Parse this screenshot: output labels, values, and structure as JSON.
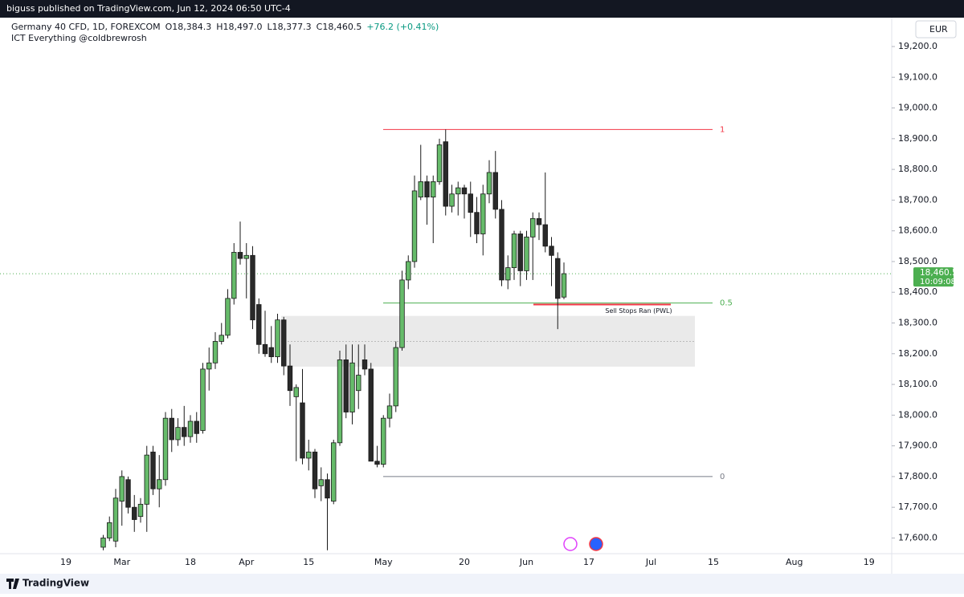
{
  "header": {
    "published": "biguss published on TradingView.com, Jun 12, 2024 06:50 UTC-4",
    "symbol": "Germany 40 CFD, 1D, FOREXCOM",
    "legend_values": [
      "O18,384.3",
      "H18,497.0",
      "L18,377.3",
      "C18,460.5",
      "+76.2 (+0.41%)"
    ],
    "indicator": "ICT Everything @coldbrewrosh",
    "currency": "EUR"
  },
  "footer": {
    "brand": "TradingView"
  },
  "chart_data": {
    "type": "candlestick",
    "up_color": "#66bb6a",
    "down_color": "#2a2a2a",
    "categories": [
      "19",
      null,
      null,
      null,
      null,
      null,
      null,
      null,
      null,
      "Mar",
      null,
      null,
      null,
      null,
      null,
      null,
      null,
      null,
      null,
      null,
      "18",
      null,
      null,
      null,
      null,
      null,
      null,
      null,
      null,
      "Apr",
      null,
      null,
      null,
      null,
      null,
      null,
      null,
      null,
      null,
      "15",
      null,
      null,
      null,
      null,
      null,
      null,
      null,
      null,
      null,
      null,
      null,
      "May",
      null,
      null,
      null,
      null,
      null,
      null,
      null,
      null,
      null,
      null,
      null,
      null,
      "20",
      null,
      null,
      null,
      null,
      null,
      null,
      null,
      null,
      null,
      "Jun",
      null,
      null,
      null,
      null,
      null,
      null,
      null,
      null,
      null,
      "17",
      null,
      null,
      null,
      null,
      null,
      null,
      null,
      null,
      null,
      "Jul",
      null,
      null,
      null,
      null,
      null,
      null,
      null,
      null,
      null,
      "15",
      null,
      null,
      null,
      null,
      null,
      null,
      null,
      null,
      null,
      null,
      null,
      null,
      "Aug",
      null,
      null,
      null,
      null,
      null,
      null,
      null,
      null,
      null,
      null,
      null,
      "19"
    ],
    "ohlc": [
      null,
      null,
      null,
      null,
      null,
      null,
      [
        17570,
        17610,
        17560,
        17600
      ],
      [
        17600,
        17670,
        17590,
        17650
      ],
      [
        17590,
        17760,
        17570,
        17730
      ],
      [
        17720,
        17820,
        17640,
        17800
      ],
      [
        17790,
        17800,
        17680,
        17700
      ],
      [
        17700,
        17740,
        17620,
        17660
      ],
      [
        17670,
        17730,
        17650,
        17710
      ],
      [
        17710,
        17900,
        17620,
        17870
      ],
      [
        17880,
        17900,
        17740,
        17760
      ],
      [
        17760,
        17870,
        17700,
        17790
      ],
      [
        17790,
        18010,
        17770,
        17990
      ],
      [
        17990,
        18020,
        17880,
        17920
      ],
      [
        17920,
        17990,
        17900,
        17960
      ],
      [
        17960,
        18030,
        17900,
        17930
      ],
      [
        17930,
        18000,
        17910,
        17980
      ],
      [
        17980,
        18010,
        17910,
        17940
      ],
      [
        17950,
        18170,
        17940,
        18150
      ],
      [
        18150,
        18220,
        18080,
        18170
      ],
      [
        18170,
        18270,
        18150,
        18240
      ],
      [
        18240,
        18300,
        18230,
        18260
      ],
      [
        18260,
        18410,
        18250,
        18380
      ],
      [
        18380,
        18560,
        18360,
        18530
      ],
      [
        18530,
        18630,
        18490,
        18510
      ],
      [
        18510,
        18560,
        18380,
        18520
      ],
      [
        18520,
        18550,
        18280,
        18310
      ],
      [
        18360,
        18380,
        18200,
        18230
      ],
      [
        18230,
        18340,
        18190,
        18200
      ],
      [
        18220,
        18290,
        18170,
        18190
      ],
      [
        18190,
        18330,
        18170,
        18310
      ],
      [
        18310,
        18320,
        18130,
        18160
      ],
      [
        18160,
        18230,
        18030,
        18080
      ],
      [
        18060,
        18100,
        17850,
        18090
      ],
      [
        18040,
        18150,
        17840,
        17860
      ],
      [
        17860,
        17920,
        17820,
        17880
      ],
      [
        17880,
        17890,
        17730,
        17760
      ],
      [
        17770,
        17830,
        17720,
        17790
      ],
      [
        17790,
        17810,
        17560,
        17730
      ],
      [
        17720,
        17920,
        17710,
        17910
      ],
      [
        17910,
        18210,
        17900,
        18180
      ],
      [
        18180,
        18230,
        17990,
        18010
      ],
      [
        18010,
        18230,
        17970,
        18170
      ],
      [
        18080,
        18230,
        18020,
        18130
      ],
      [
        18180,
        18230,
        18130,
        18150
      ],
      [
        18150,
        18170,
        17850,
        17850
      ],
      [
        17850,
        17900,
        17830,
        17840
      ],
      [
        17840,
        18000,
        17830,
        17990
      ],
      [
        17990,
        18070,
        17960,
        18030
      ],
      [
        18030,
        18240,
        18010,
        18220
      ],
      [
        18220,
        18470,
        18210,
        18440
      ],
      [
        18440,
        18520,
        18410,
        18500
      ],
      [
        18500,
        18780,
        18480,
        18730
      ],
      [
        18710,
        18880,
        18700,
        18760
      ],
      [
        18760,
        18780,
        18620,
        18710
      ],
      [
        18710,
        18780,
        18560,
        18760
      ],
      [
        18760,
        18900,
        18750,
        18880
      ],
      [
        18890,
        18930,
        18650,
        18680
      ],
      [
        18680,
        18750,
        18660,
        18720
      ],
      [
        18720,
        18760,
        18650,
        18740
      ],
      [
        18740,
        18750,
        18640,
        18720
      ],
      [
        18720,
        18760,
        18580,
        18660
      ],
      [
        18660,
        18710,
        18560,
        18590
      ],
      [
        18590,
        18750,
        18520,
        18720
      ],
      [
        18720,
        18830,
        18690,
        18790
      ],
      [
        18790,
        18860,
        18640,
        18670
      ],
      [
        18670,
        18700,
        18420,
        18440
      ],
      [
        18440,
        18520,
        18410,
        18480
      ],
      [
        18480,
        18600,
        18440,
        18590
      ],
      [
        18590,
        18600,
        18420,
        18470
      ],
      [
        18470,
        18600,
        18440,
        18580
      ],
      [
        18580,
        18660,
        18440,
        18640
      ],
      [
        18640,
        18660,
        18570,
        18620
      ],
      [
        18620,
        18790,
        18530,
        18550
      ],
      [
        18550,
        18580,
        18420,
        18520
      ],
      [
        18510,
        18530,
        18280,
        18380
      ],
      [
        18384.3,
        18497.0,
        18377.3,
        18460.5
      ],
      null,
      null,
      null,
      null,
      null,
      null,
      null,
      null,
      null,
      null,
      null,
      null,
      null,
      null,
      null,
      null,
      null,
      null,
      null,
      null,
      null,
      null,
      null,
      null,
      null,
      null,
      null,
      null,
      null,
      null,
      null,
      null,
      null,
      null,
      null,
      null,
      null,
      null,
      null,
      null,
      null,
      null,
      null,
      null,
      null,
      null,
      null,
      null,
      null
    ],
    "ylim": [
      17549,
      19294
    ],
    "yticks": [
      {
        "value": 17600,
        "label": "17,600.0"
      },
      {
        "value": 17700,
        "label": "17,700.0"
      },
      {
        "value": 17800,
        "label": "17,800.0"
      },
      {
        "value": 17900,
        "label": "17,900.0"
      },
      {
        "value": 18000,
        "label": "18,000.0"
      },
      {
        "value": 18100,
        "label": "18,100.0"
      },
      {
        "value": 18200,
        "label": "18,200.0"
      },
      {
        "value": 18300,
        "label": "18,300.0"
      },
      {
        "value": 18400,
        "label": "18,400.0"
      },
      {
        "value": 18500,
        "label": "18,500.0"
      },
      {
        "value": 18600,
        "label": "18,600.0"
      },
      {
        "value": 18700,
        "label": "18,700.0"
      },
      {
        "value": 18800,
        "label": "18,800.0"
      },
      {
        "value": 18900,
        "label": "18,900.0"
      },
      {
        "value": 19000,
        "label": "19,000.0"
      },
      {
        "value": 19100,
        "label": "19,100.0"
      },
      {
        "value": 19200,
        "label": "19,200.0"
      }
    ],
    "last_price": {
      "value": 18460.5,
      "label": "18,460.5",
      "color": "#4caf50"
    },
    "countdown": "10:09:08",
    "fib_levels": [
      {
        "label": "1",
        "value": 18930,
        "color": "#f23645"
      },
      {
        "label": "0.5",
        "value": 18365,
        "color": "#4caf50"
      },
      {
        "label": "0",
        "value": 17800,
        "color": "#787b86"
      }
    ],
    "zone": {
      "top": 18323,
      "bottom": 18158,
      "mid": 18240
    },
    "sell_stops": {
      "label": "Sell Stops Ran (PWL)",
      "value": 18360,
      "color": "#f23645"
    }
  }
}
